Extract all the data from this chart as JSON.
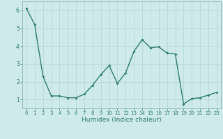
{
  "x": [
    0,
    1,
    2,
    3,
    4,
    5,
    6,
    7,
    8,
    9,
    10,
    11,
    12,
    13,
    14,
    15,
    16,
    17,
    18,
    19,
    20,
    21,
    22,
    23
  ],
  "y": [
    6.1,
    5.2,
    2.3,
    1.2,
    1.2,
    1.1,
    1.1,
    1.3,
    1.8,
    2.4,
    2.9,
    1.9,
    2.5,
    3.7,
    4.35,
    3.9,
    3.95,
    3.6,
    3.55,
    0.75,
    1.05,
    1.1,
    1.25,
    1.4
  ],
  "line_color": "#2e7d6e",
  "marker": "D",
  "marker_size": 2.0,
  "bg_color": "#ceeaea",
  "grid_color": "#b8d8d8",
  "xlabel": "Humidex (Indice chaleur)",
  "xlim": [
    -0.5,
    23.5
  ],
  "ylim": [
    0.5,
    6.5
  ],
  "yticks": [
    1,
    2,
    3,
    4,
    5,
    6
  ],
  "xticks": [
    0,
    1,
    2,
    3,
    4,
    5,
    6,
    7,
    8,
    9,
    10,
    11,
    12,
    13,
    14,
    15,
    16,
    17,
    18,
    19,
    20,
    21,
    22,
    23
  ],
  "tick_fontsize": 5.0,
  "xlabel_fontsize": 6.5,
  "linewidth": 1.0
}
